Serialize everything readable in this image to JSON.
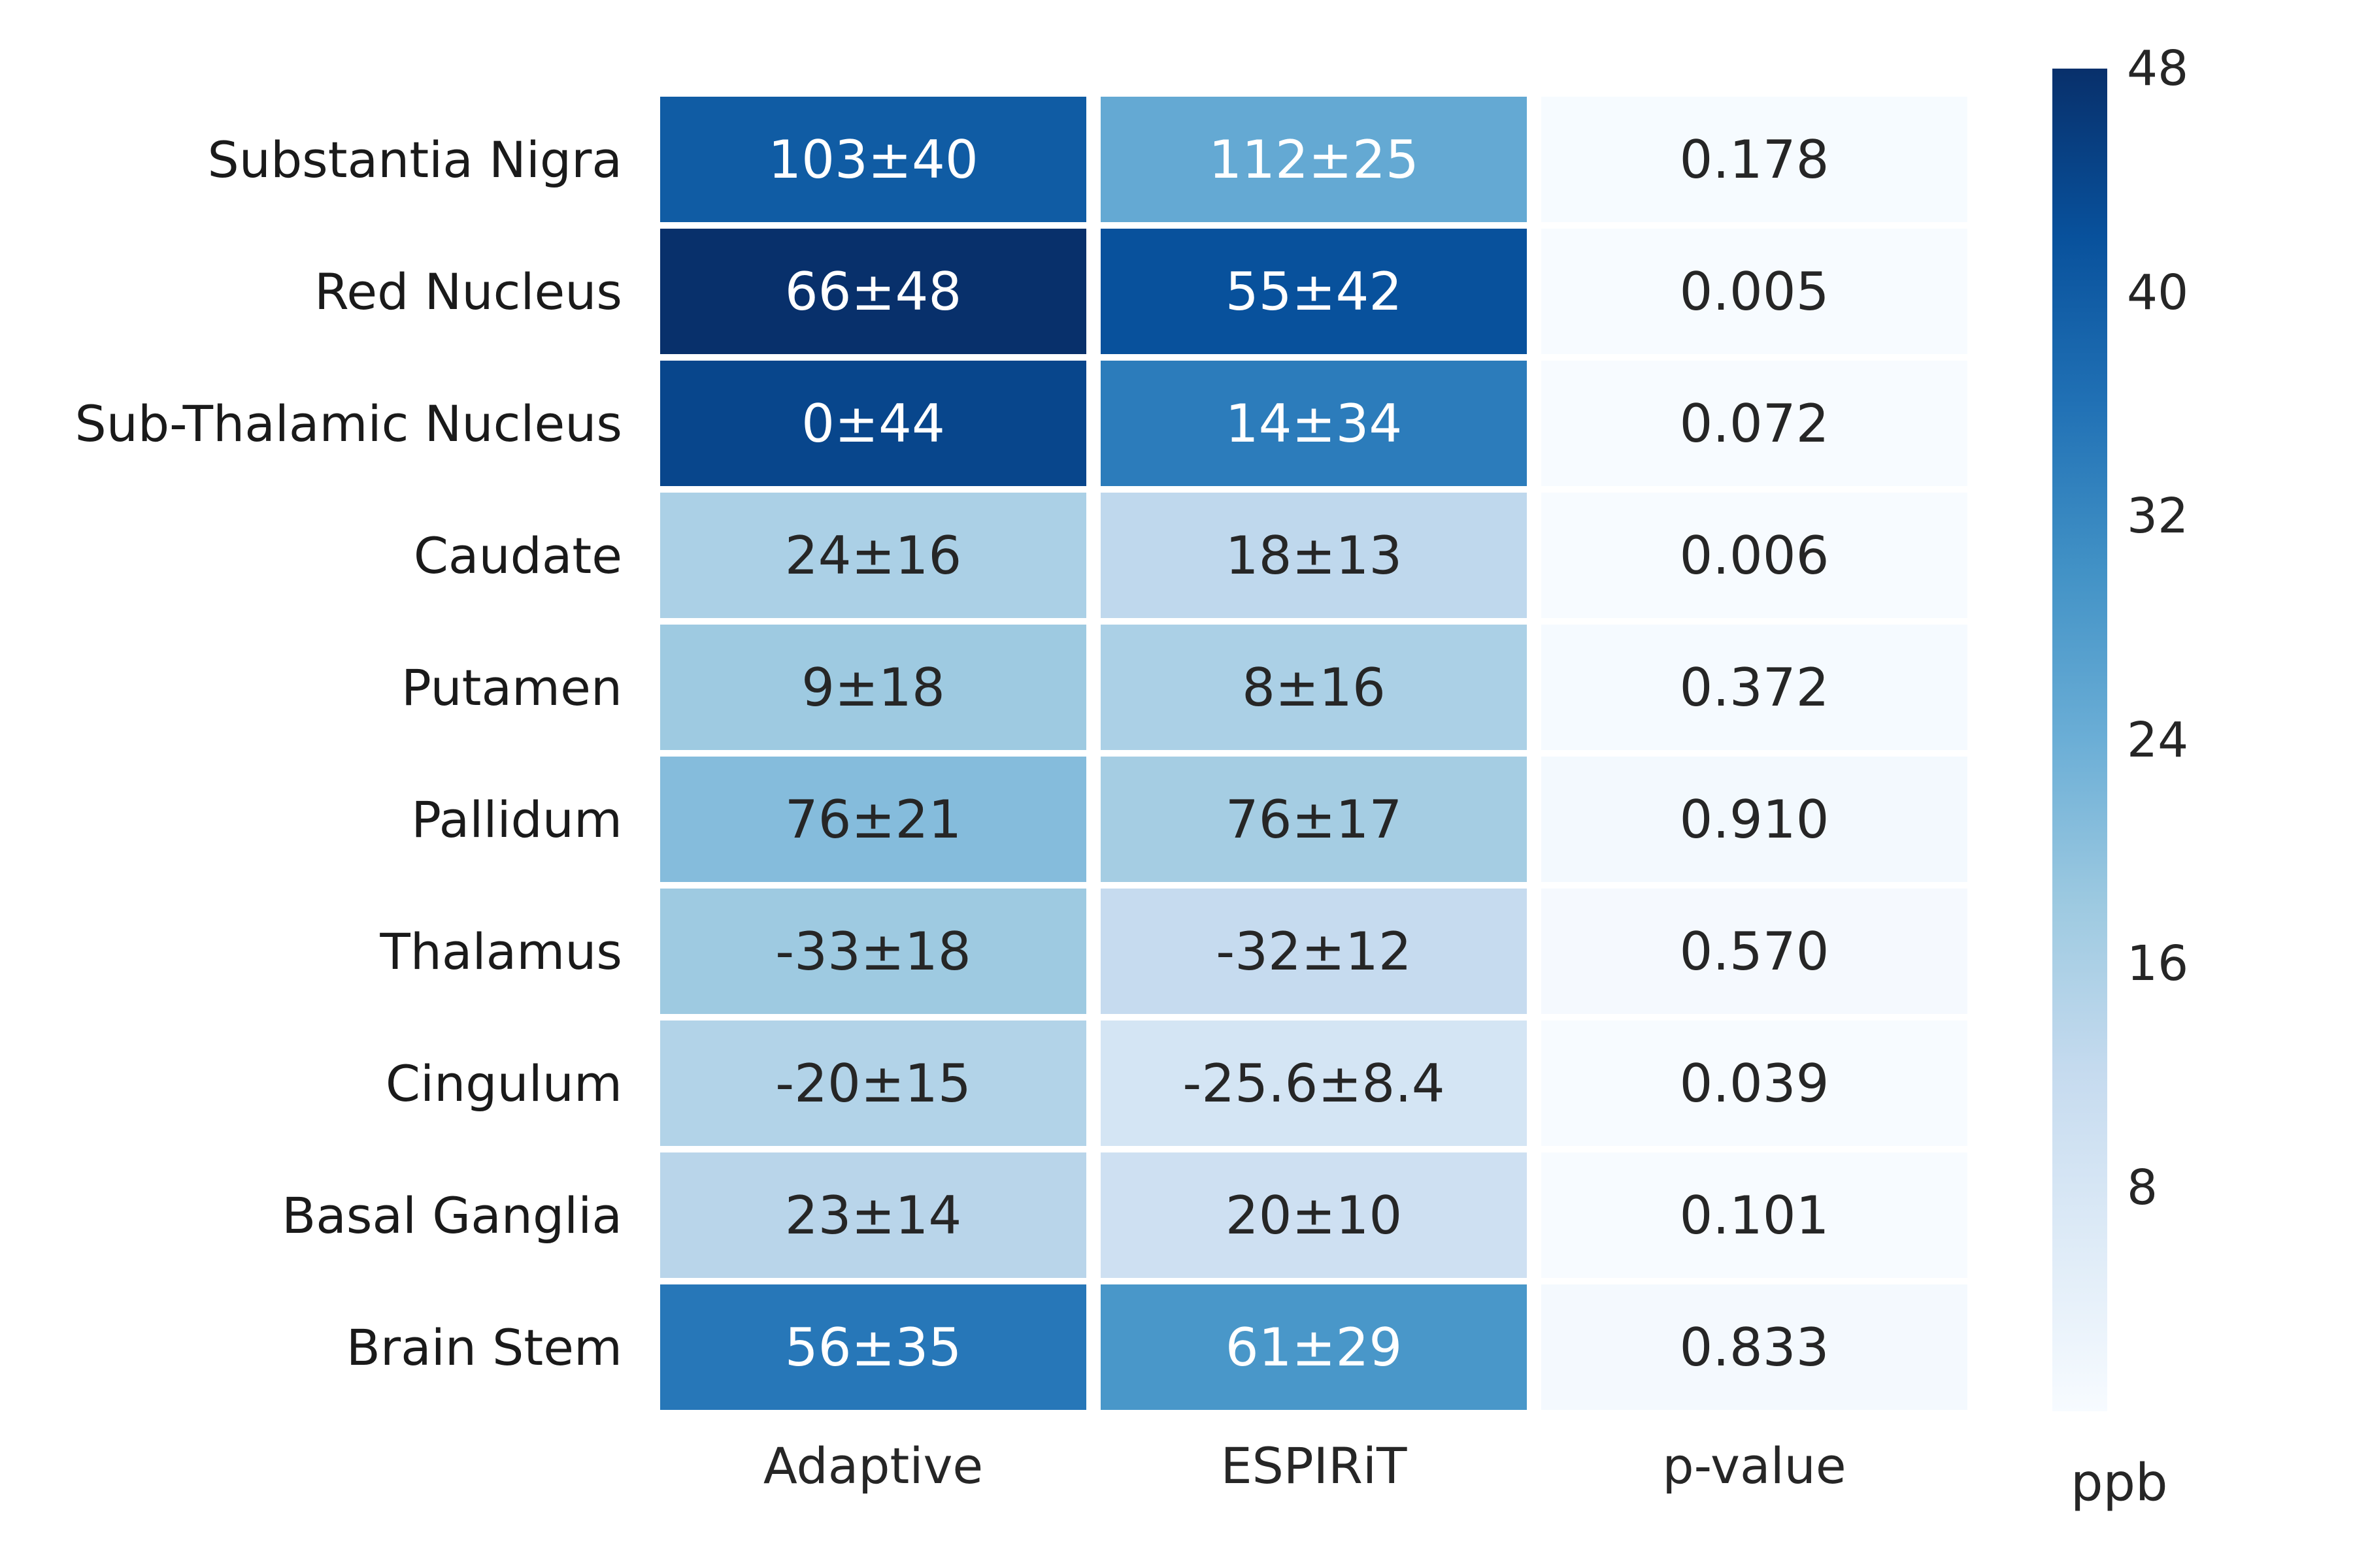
{
  "chart_data": {
    "type": "heatmap",
    "rows": [
      "Substantia Nigra",
      "Red Nucleus",
      "Sub-Thalamic Nucleus",
      "Caudate",
      "Putamen",
      "Pallidum",
      "Thalamus",
      "Cingulum",
      "Basal Ganglia",
      "Brain Stem"
    ],
    "columns": [
      "Adaptive",
      "ESPIRiT",
      "p-value"
    ],
    "cells": [
      [
        {
          "label": "103±40",
          "value": 40
        },
        {
          "label": "112±25",
          "value": 25
        },
        {
          "label": "0.178",
          "value": 0.178
        }
      ],
      [
        {
          "label": "66±48",
          "value": 48
        },
        {
          "label": "55±42",
          "value": 42
        },
        {
          "label": "0.005",
          "value": 0.005
        }
      ],
      [
        {
          "label": "0±44",
          "value": 44
        },
        {
          "label": "14±34",
          "value": 34
        },
        {
          "label": "0.072",
          "value": 0.072
        }
      ],
      [
        {
          "label": "24±16",
          "value": 16
        },
        {
          "label": "18±13",
          "value": 13
        },
        {
          "label": "0.006",
          "value": 0.006
        }
      ],
      [
        {
          "label": "9±18",
          "value": 18
        },
        {
          "label": "8±16",
          "value": 16
        },
        {
          "label": "0.372",
          "value": 0.372
        }
      ],
      [
        {
          "label": "76±21",
          "value": 21
        },
        {
          "label": "76±17",
          "value": 17
        },
        {
          "label": "0.910",
          "value": 0.91
        }
      ],
      [
        {
          "label": "-33±18",
          "value": 18
        },
        {
          "label": "-32±12",
          "value": 12
        },
        {
          "label": "0.570",
          "value": 0.57
        }
      ],
      [
        {
          "label": "-20±15",
          "value": 15
        },
        {
          "label": "-25.6±8.4",
          "value": 8.4
        },
        {
          "label": "0.039",
          "value": 0.039
        }
      ],
      [
        {
          "label": "23±14",
          "value": 14
        },
        {
          "label": "20±10",
          "value": 10
        },
        {
          "label": "0.101",
          "value": 0.101
        }
      ],
      [
        {
          "label": "56±35",
          "value": 35
        },
        {
          "label": "61±29",
          "value": 29
        },
        {
          "label": "0.833",
          "value": 0.833
        }
      ]
    ],
    "colorbar": {
      "label": "ppb",
      "min": 0,
      "max": 48,
      "ticks": [
        48,
        40,
        32,
        24,
        16,
        8
      ],
      "colormap": "Blues",
      "colors": [
        "#f7fbff",
        "#deebf7",
        "#c6dbef",
        "#9ecae1",
        "#6baed6",
        "#4292c6",
        "#2171b5",
        "#08519c",
        "#08306b"
      ]
    },
    "text_colors": {
      "light": "#ffffff",
      "dark": "#262626"
    }
  }
}
